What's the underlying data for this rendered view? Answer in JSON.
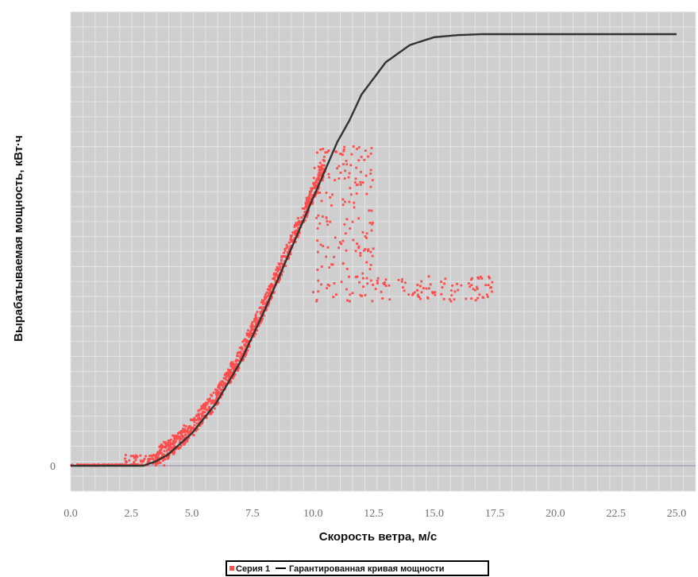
{
  "chart_data": {
    "type": "scatter",
    "xlabel": "Скорость ветра, м/с",
    "ylabel": "Вырабатываемая мощность, кВт·ч",
    "xlim": [
      0,
      25
    ],
    "ylim": [
      -6,
      100
    ],
    "x_ticks": [
      "0.0",
      "2.5",
      "5.0",
      "7.5",
      "10.0",
      "12.5",
      "15.0",
      "17.5",
      "20.0",
      "22.5",
      "25.0"
    ],
    "y_ticks": [
      "0"
    ],
    "grid": true,
    "legend": "bottom-center",
    "colors": {
      "plot_bg": "#cfcfcf",
      "grid": "#e4e4e4",
      "series1": "#ff4d4d",
      "curve": "#333333",
      "zero_line": "#9a9ab8"
    },
    "series": [
      {
        "name": "Серия 1",
        "kind": "scatter",
        "clusters": [
          {
            "x_range": [
              0.0,
              3.2
            ],
            "y_min": 0.0,
            "y_max": 0.3,
            "count": 90
          },
          {
            "x_range": [
              2.2,
              3.9
            ],
            "y_min": 0.0,
            "y_max": 2.5,
            "count": 60
          },
          {
            "x_range": [
              3.5,
              10.5
            ],
            "follows_curve": true,
            "spread_above": 3.5,
            "spread_below": 1.0,
            "count": 900
          },
          {
            "x_range": [
              10.0,
              12.5
            ],
            "y_min": 38.0,
            "y_max": 74.0,
            "count": 180
          },
          {
            "x_range": [
              12.5,
              17.5
            ],
            "y_min": 38.0,
            "y_max": 44.0,
            "count": 90
          }
        ]
      },
      {
        "name": "Гарантированная кривая мощности",
        "kind": "line",
        "x": [
          0,
          3.0,
          3.5,
          4.0,
          5.0,
          6.0,
          7.0,
          8.0,
          9.0,
          10.0,
          11.0,
          11.5,
          12.0,
          13.0,
          14.0,
          15.0,
          16.0,
          17.0,
          20.0,
          25.0
        ],
        "y": [
          0,
          0,
          1.0,
          2.5,
          7.5,
          14.5,
          24.0,
          36.0,
          49.0,
          62.0,
          75.0,
          80.0,
          86.0,
          93.5,
          97.5,
          99.3,
          99.8,
          100.0,
          100.0,
          100.0
        ]
      }
    ]
  }
}
